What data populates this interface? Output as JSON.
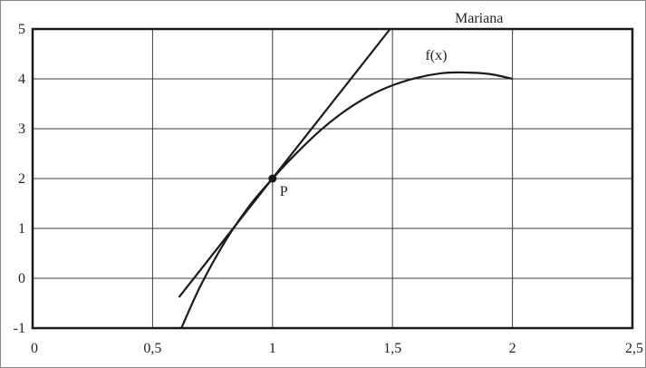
{
  "chart_data": {
    "type": "line",
    "title": "Mariana",
    "xlim": [
      0,
      2.5
    ],
    "ylim": [
      -1,
      5
    ],
    "x_ticks": [
      {
        "value": 0,
        "label": "0"
      },
      {
        "value": 0.5,
        "label": "0,5"
      },
      {
        "value": 1,
        "label": "1"
      },
      {
        "value": 1.5,
        "label": "1,5"
      },
      {
        "value": 2,
        "label": "2"
      },
      {
        "value": 2.5,
        "label": "2,5"
      }
    ],
    "y_ticks": [
      {
        "value": 5,
        "label": "5"
      },
      {
        "value": 4,
        "label": "4"
      },
      {
        "value": 3,
        "label": "3"
      },
      {
        "value": 2,
        "label": "2"
      },
      {
        "value": 1,
        "label": "1"
      },
      {
        "value": 0,
        "label": "0"
      },
      {
        "value": -1,
        "label": "-1"
      }
    ],
    "grid": true,
    "series": [
      {
        "name": "f(x)",
        "kind": "curve",
        "x": [
          0.62,
          0.7,
          0.8,
          0.9,
          1.0,
          1.1,
          1.2,
          1.3,
          1.4,
          1.5,
          1.6,
          1.7,
          1.78,
          1.9,
          2.0
        ],
        "y": [
          -1.0,
          -0.15,
          0.72,
          1.43,
          2.0,
          2.51,
          2.97,
          3.35,
          3.65,
          3.87,
          4.02,
          4.11,
          4.13,
          4.1,
          4.0
        ]
      },
      {
        "name": "",
        "kind": "tangent",
        "x": [
          0.61,
          1.49
        ],
        "y": [
          -0.38,
          5.0
        ]
      }
    ],
    "point": {
      "label": "P",
      "x": 1,
      "y": 2
    }
  }
}
